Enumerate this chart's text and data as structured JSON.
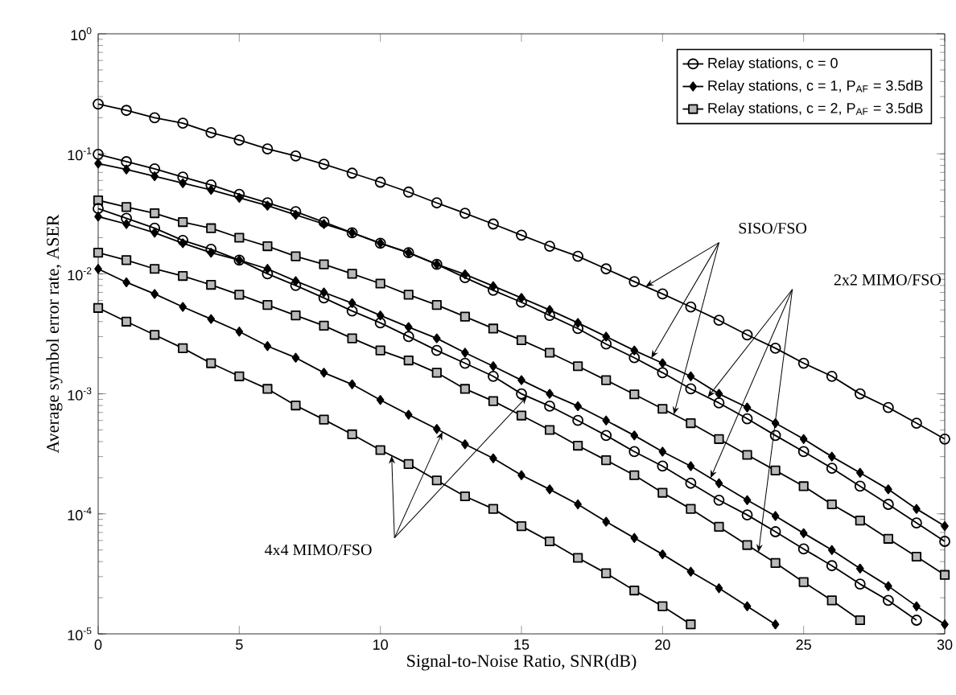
{
  "chart_data": {
    "type": "line",
    "xlabel": "Signal-to-Noise Ratio, SNR(dB)",
    "ylabel": "Average symbol error rate, ASER",
    "log": "y",
    "grid": false,
    "legend": "top right",
    "line_style": "solid",
    "xlim": [
      0,
      30
    ],
    "xticks": [
      0,
      5,
      10,
      15,
      20,
      25,
      30
    ],
    "ylim": [
      1e-05,
      1
    ],
    "yticks": [
      {
        "value": 1e-05,
        "label": "10$^{-5}$"
      },
      {
        "value": 0.0001,
        "label": "10$^{-4}$"
      },
      {
        "value": 0.001,
        "label": "10$^{-3}$"
      },
      {
        "value": 0.01,
        "label": "10$^{-2}$"
      },
      {
        "value": 0.1,
        "label": "10$^{-1}$"
      },
      {
        "value": 1,
        "label": "10$^{0}$"
      }
    ],
    "x": [
      0,
      1,
      2,
      3,
      4,
      5,
      6,
      7,
      8,
      9,
      10,
      11,
      12,
      13,
      14,
      15,
      16,
      17,
      18,
      19,
      20,
      21,
      22,
      23,
      24,
      25,
      26,
      27,
      28,
      29,
      30
    ],
    "series": [
      {
        "name": "Relay stations, c = 0",
        "color": "#000000",
        "marker": "circle",
        "values": [
          0.26,
          0.23,
          0.2,
          0.18,
          0.15,
          0.13,
          0.11,
          0.096,
          0.082,
          0.069,
          0.058,
          0.048,
          0.039,
          0.032,
          0.026,
          0.021,
          0.017,
          0.014,
          0.011,
          0.0086,
          0.0068,
          0.0053,
          0.0041,
          0.0031,
          0.0024,
          0.0018,
          0.0014,
          0.001,
          0.00077,
          0.00057,
          0.00042
        ]
      },
      {
        "name": "Relay stations, c = 1, P$_{AF}$ = 3.5dB",
        "color": "#000000",
        "marker": "diamond",
        "values": [
          0.083,
          0.074,
          0.065,
          0.057,
          0.05,
          0.043,
          0.037,
          0.031,
          0.026,
          0.022,
          0.018,
          0.015,
          0.012,
          0.0099,
          0.0079,
          0.0063,
          0.005,
          0.0039,
          0.003,
          0.0023,
          0.0018,
          0.0014,
          0.001,
          0.00077,
          0.00057,
          0.00042,
          0.0003,
          0.00022,
          0.00016,
          0.00011,
          7.9e-05
        ]
      },
      {
        "name": "Relay stations, c = 2, P$_{AF}$ = 3.5dB",
        "color": "#000000",
        "marker": "square",
        "values": [
          0.041,
          0.036,
          0.032,
          0.027,
          0.024,
          0.02,
          0.017,
          0.014,
          0.012,
          0.01,
          0.0083,
          0.0067,
          0.0055,
          0.0044,
          0.0035,
          0.0028,
          0.0022,
          0.0017,
          0.0013,
          0.00099,
          0.00075,
          0.00057,
          0.00042,
          0.00031,
          0.00023,
          0.00017,
          0.00012,
          8.8e-05,
          6.2e-05,
          4.4e-05,
          3.1e-05
        ]
      },
      {
        "color": "#000000",
        "marker": "circle",
        "values": [
          0.099,
          0.086,
          0.075,
          0.064,
          0.055,
          0.046,
          0.039,
          0.033,
          0.027,
          0.022,
          0.018,
          0.015,
          0.012,
          0.0093,
          0.0073,
          0.0058,
          0.0045,
          0.0035,
          0.0026,
          0.002,
          0.0015,
          0.0011,
          0.00084,
          0.00062,
          0.00045,
          0.00033,
          0.00024,
          0.00017,
          0.00012,
          8.4e-05,
          5.9e-05
        ]
      },
      {
        "color": "#000000",
        "marker": "diamond",
        "values": [
          0.03,
          0.026,
          0.022,
          0.018,
          0.015,
          0.013,
          0.011,
          0.0087,
          0.007,
          0.0057,
          0.0045,
          0.0036,
          0.0029,
          0.0022,
          0.0017,
          0.0013,
          0.001,
          0.00079,
          0.0006,
          0.00045,
          0.00033,
          0.00025,
          0.00018,
          0.00013,
          9.6e-05,
          6.9e-05,
          5e-05,
          3.5e-05,
          2.5e-05,
          1.7e-05,
          1.2e-05
        ]
      },
      {
        "color": "#000000",
        "marker": "square",
        "values": [
          0.015,
          0.013,
          0.011,
          0.0096,
          0.0081,
          0.0067,
          0.0055,
          0.0045,
          0.0037,
          0.0029,
          0.0023,
          0.0019,
          0.0015,
          0.0011,
          0.00087,
          0.00066,
          0.0005,
          0.00037,
          0.00028,
          0.00021,
          0.00015,
          0.00011,
          7.8e-05,
          5.5e-05,
          3.9e-05,
          2.7e-05,
          1.9e-05,
          1.3e-05,
          null,
          null,
          null
        ]
      },
      {
        "color": "#000000",
        "marker": "circle",
        "values": [
          0.035,
          0.029,
          0.024,
          0.019,
          0.016,
          0.013,
          0.01,
          0.008,
          0.0063,
          0.0049,
          0.0039,
          0.003,
          0.0023,
          0.0018,
          0.0014,
          0.001,
          0.00079,
          0.0006,
          0.00045,
          0.00033,
          0.00025,
          0.00018,
          0.00013,
          9.8e-05,
          7.1e-05,
          5.1e-05,
          3.7e-05,
          2.6e-05,
          1.9e-05,
          1.3e-05,
          null
        ]
      },
      {
        "color": "#000000",
        "marker": "diamond",
        "values": [
          0.011,
          0.0085,
          0.0068,
          0.0053,
          0.0042,
          0.0033,
          0.0025,
          0.002,
          0.0015,
          0.0012,
          0.00089,
          0.00067,
          0.00051,
          0.00038,
          0.00029,
          0.00021,
          0.00016,
          0.00012,
          8.6e-05,
          6.3e-05,
          4.6e-05,
          3.3e-05,
          2.4e-05,
          1.7e-05,
          1.2e-05,
          null,
          null,
          null,
          null,
          null,
          null
        ]
      },
      {
        "color": "#000000",
        "marker": "square",
        "values": [
          0.0052,
          0.004,
          0.0031,
          0.0024,
          0.0018,
          0.0014,
          0.0011,
          0.0008,
          0.00061,
          0.00046,
          0.00034,
          0.00026,
          0.00019,
          0.00014,
          0.00011,
          7.9e-05,
          5.9e-05,
          4.3e-05,
          3.2e-05,
          2.3e-05,
          1.7e-05,
          1.2e-05,
          null,
          null,
          null,
          null,
          null,
          null,
          null,
          null,
          null
        ]
      }
    ],
    "annotations": [
      "SISO/FSO",
      "2x2 MIMO/FSO",
      "4x4 MIMO/FSO"
    ]
  }
}
